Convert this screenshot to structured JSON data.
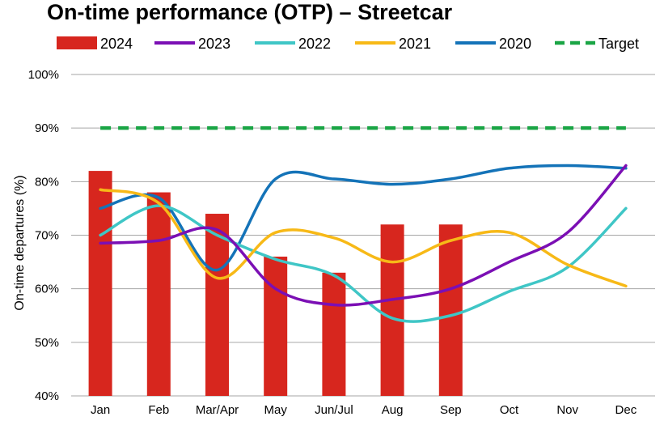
{
  "chart_data": {
    "type": "bar",
    "title": "On-time performance (OTP) – Streetcar",
    "ylabel": "On-time departures (%)",
    "xlabel": "",
    "ylim": [
      40,
      100
    ],
    "yticks": [
      40,
      50,
      60,
      70,
      80,
      90,
      100
    ],
    "ytick_suffix": "%",
    "grid": true,
    "legend_position": "top",
    "categories": [
      "Jan",
      "Feb",
      "Mar/Apr",
      "May",
      "Jun/Jul",
      "Aug",
      "Sep",
      "Oct",
      "Nov",
      "Dec"
    ],
    "series": [
      {
        "name": "2024",
        "kind": "bar",
        "color": "#d7261e",
        "values": [
          82,
          78,
          74,
          66,
          63,
          72,
          72,
          null,
          null,
          null
        ]
      },
      {
        "name": "2023",
        "kind": "line",
        "color": "#7b0fb4",
        "values": [
          68.5,
          69,
          71,
          60,
          57,
          58,
          60,
          65,
          70.5,
          83
        ]
      },
      {
        "name": "2022",
        "kind": "line",
        "color": "#3fc6c6",
        "values": [
          70,
          75.5,
          70,
          65.5,
          62.5,
          54.5,
          55,
          59.5,
          64,
          75
        ]
      },
      {
        "name": "2021",
        "kind": "line",
        "color": "#f7b917",
        "values": [
          78.5,
          76,
          62,
          70.5,
          69.5,
          65,
          69,
          70.5,
          64.5,
          60.5
        ]
      },
      {
        "name": "2020",
        "kind": "line",
        "color": "#1473b8",
        "values": [
          75,
          77,
          63.5,
          80.5,
          80.5,
          79.5,
          80.5,
          82.5,
          83,
          82.5
        ]
      },
      {
        "name": "Target",
        "kind": "dashed",
        "color": "#1aa545",
        "values": [
          90,
          90,
          90,
          90,
          90,
          90,
          90,
          90,
          90,
          90
        ]
      }
    ]
  }
}
